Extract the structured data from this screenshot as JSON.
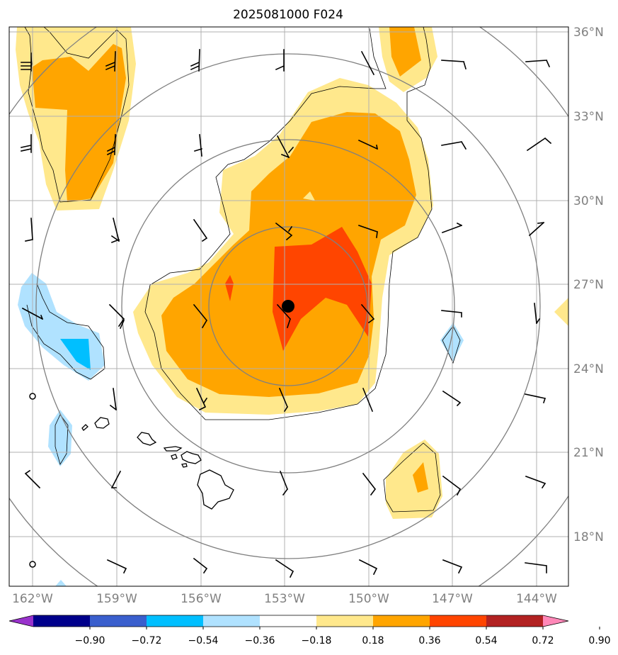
{
  "title": "2025081000 F024",
  "lat_labels": [
    "36°N",
    "33°N",
    "30°N",
    "27°N",
    "24°N",
    "21°N",
    "18°N"
  ],
  "lon_labels": [
    "162°W",
    "159°W",
    "156°W",
    "153°W",
    "150°W",
    "147°W",
    "144°W"
  ],
  "colorbar": {
    "tick_labels": [
      "−0.90",
      "−0.72",
      "−0.54",
      "−0.36",
      "−0.18",
      "0.18",
      "0.36",
      "0.54",
      "0.72",
      "0.90"
    ],
    "colors": [
      "#9932CC",
      "#00008B",
      "#3A5FCD",
      "#00BFFF",
      "#B0E2FF",
      "#FFFFFF",
      "#FFE88C",
      "#FFA500",
      "#FF4500",
      "#B22222",
      "#FF88B8"
    ]
  },
  "storm_center_marker": "black-dot",
  "palette": {
    "light_yellow": "#FFE88C",
    "orange": "#FFA500",
    "red_orange": "#FF4500",
    "light_blue": "#B0E2FF",
    "deep_sky_blue": "#00BFFF",
    "gridline": "#b0b0b0",
    "range_ring": "#808080"
  }
}
